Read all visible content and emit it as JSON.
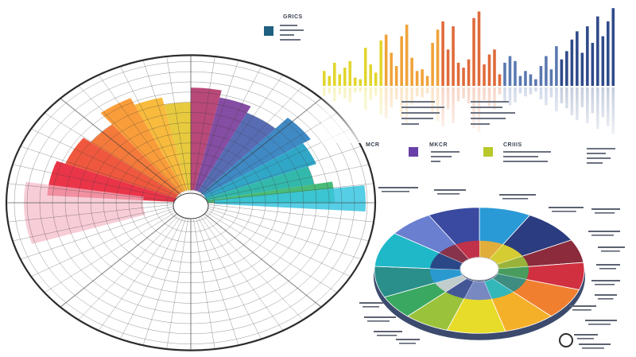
{
  "colors": {
    "wheel": [
      "#e8243a",
      "#ee4a2e",
      "#f36f2a",
      "#f8952a",
      "#f7b52c",
      "#e6c52f",
      "#b23a6e",
      "#7b3e9b",
      "#4a5fae",
      "#2f7fbf",
      "#1f9fc3",
      "#22b3a4",
      "#39b56c",
      "#7cc243"
    ],
    "donut": [
      "#2a9ad6",
      "#2b3c80",
      "#8b2b3c",
      "#d03040",
      "#f08030",
      "#f5b02a",
      "#e8dc2a",
      "#9ac23a",
      "#3aa860",
      "#2a8e8a",
      "#1fb8c8",
      "#6a7fd0",
      "#3a4aa0",
      "#d0d0d8"
    ],
    "bar_groups": [
      "#e1d62c",
      "#f0a23a",
      "#e06a3a",
      "#5a78b0",
      "#2f4a8a"
    ],
    "legend_teal": "#1f5f80",
    "legend_purple": "#6a40a8",
    "legend_lime": "#b8c82a"
  },
  "labels": {
    "legend_header": "GRICS",
    "mid_header_1": "MCR",
    "mid_header_2": "MKCR",
    "mid_header_3": "CRIIIS"
  },
  "chart_data": [
    {
      "type": "pie",
      "title": "",
      "values": [
        10,
        9,
        8,
        8,
        7,
        7,
        7,
        8,
        9,
        8,
        7,
        6,
        6
      ],
      "note": "radial colour wheel with grid; slice values estimated from equal-ish angular sectors"
    },
    {
      "type": "bar",
      "title": "",
      "values": [
        18,
        12,
        28,
        14,
        22,
        30,
        10,
        8,
        46,
        26,
        16,
        55,
        62,
        40,
        24,
        60,
        74,
        34,
        18,
        20,
        12,
        52,
        68,
        78,
        44,
        72,
        28,
        22,
        32,
        82,
        90,
        26,
        38,
        44,
        14,
        28,
        36,
        30,
        12,
        18,
        14,
        8,
        24,
        36,
        20,
        48,
        32,
        42,
        56,
        66,
        40,
        72,
        52,
        84,
        60,
        78,
        94
      ],
      "ylim": [
        0,
        100
      ]
    },
    {
      "type": "pie",
      "title": "",
      "values": [
        8,
        9,
        6,
        7,
        8,
        8,
        9,
        7,
        6,
        8,
        9,
        7,
        8
      ],
      "note": "donut / radial chart with inner ring"
    }
  ]
}
